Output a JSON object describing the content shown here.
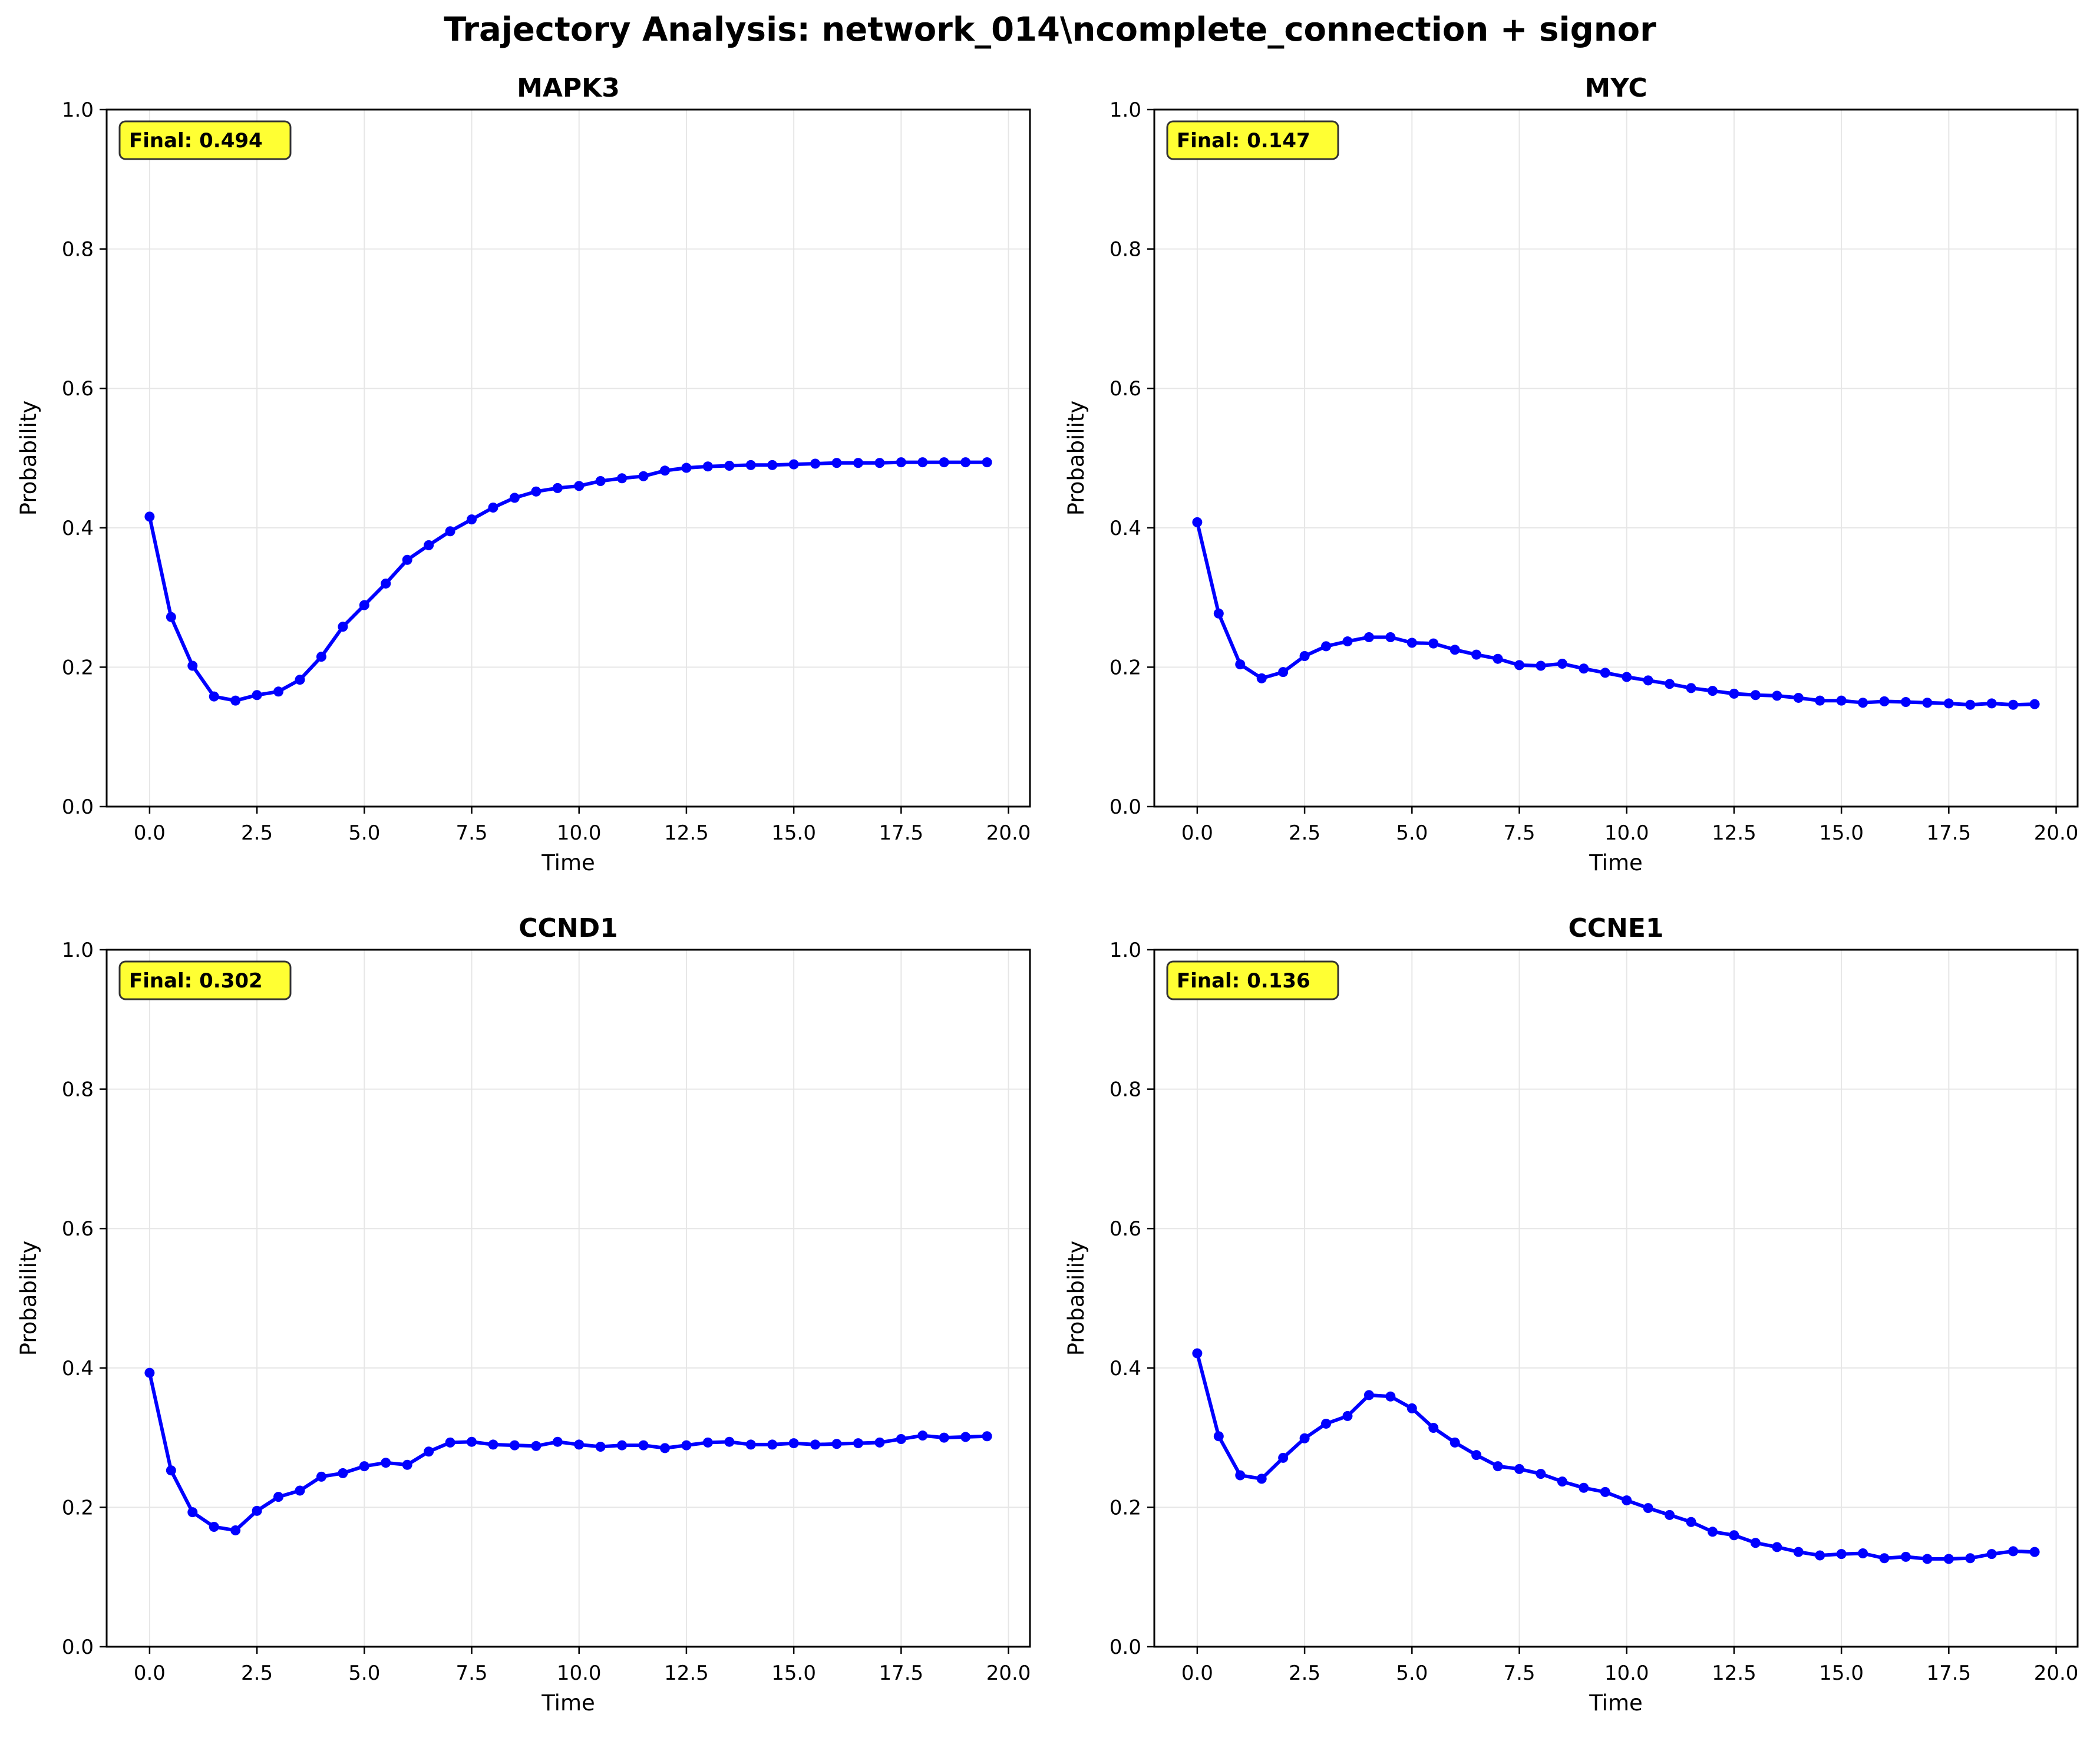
{
  "figure": {
    "suptitle": "Trajectory Analysis: network_014\\ncomplete_connection + signor"
  },
  "style": {
    "line_color": "#0000ff",
    "final_box_color": "#ffff33",
    "grid_color": "#e6e6e6"
  },
  "chart_data": [
    {
      "type": "line",
      "title": "MAPK3",
      "xlabel": "Time",
      "ylabel": "Probability",
      "xlim": [
        -1.0,
        20.5
      ],
      "ylim": [
        0.0,
        1.0
      ],
      "xticks": [
        0.0,
        2.5,
        5.0,
        7.5,
        10.0,
        12.5,
        15.0,
        17.5,
        20.0
      ],
      "xtick_labels": [
        "0.0",
        "2.5",
        "5.0",
        "7.5",
        "10.0",
        "12.5",
        "15.0",
        "17.5",
        "20.0"
      ],
      "yticks": [
        0.0,
        0.2,
        0.4,
        0.6,
        0.8,
        1.0
      ],
      "ytick_labels": [
        "0.0",
        "0.2",
        "0.4",
        "0.6",
        "0.8",
        "1.0"
      ],
      "grid": true,
      "annotation": "Final: 0.494",
      "series": [
        {
          "x": [
            0.0,
            0.5,
            1.0,
            1.5,
            2.0,
            2.5,
            3.0,
            3.5,
            4.0,
            4.5,
            5.0,
            5.5,
            6.0,
            6.5,
            7.0,
            7.5,
            8.0,
            8.5,
            9.0,
            9.5,
            10.0,
            10.5,
            11.0,
            11.5,
            12.0,
            12.5,
            13.0,
            13.5,
            14.0,
            14.5,
            15.0,
            15.5,
            16.0,
            16.5,
            17.0,
            17.5,
            18.0,
            18.5,
            19.0,
            19.5
          ],
          "y": [
            0.416,
            0.272,
            0.202,
            0.158,
            0.152,
            0.16,
            0.165,
            0.182,
            0.215,
            0.258,
            0.289,
            0.32,
            0.354,
            0.375,
            0.395,
            0.412,
            0.429,
            0.443,
            0.452,
            0.457,
            0.46,
            0.467,
            0.471,
            0.474,
            0.482,
            0.486,
            0.488,
            0.489,
            0.49,
            0.49,
            0.491,
            0.492,
            0.493,
            0.493,
            0.493,
            0.494,
            0.494,
            0.494,
            0.494,
            0.494
          ]
        }
      ]
    },
    {
      "type": "line",
      "title": "MYC",
      "xlabel": "Time",
      "ylabel": "Probability",
      "xlim": [
        -1.0,
        20.5
      ],
      "ylim": [
        0.0,
        1.0
      ],
      "xticks": [
        0.0,
        2.5,
        5.0,
        7.5,
        10.0,
        12.5,
        15.0,
        17.5,
        20.0
      ],
      "xtick_labels": [
        "0.0",
        "2.5",
        "5.0",
        "7.5",
        "10.0",
        "12.5",
        "15.0",
        "17.5",
        "20.0"
      ],
      "yticks": [
        0.0,
        0.2,
        0.4,
        0.6,
        0.8,
        1.0
      ],
      "ytick_labels": [
        "0.0",
        "0.2",
        "0.4",
        "0.6",
        "0.8",
        "1.0"
      ],
      "grid": true,
      "annotation": "Final: 0.147",
      "series": [
        {
          "x": [
            0.0,
            0.5,
            1.0,
            1.5,
            2.0,
            2.5,
            3.0,
            3.5,
            4.0,
            4.5,
            5.0,
            5.5,
            6.0,
            6.5,
            7.0,
            7.5,
            8.0,
            8.5,
            9.0,
            9.5,
            10.0,
            10.5,
            11.0,
            11.5,
            12.0,
            12.5,
            13.0,
            13.5,
            14.0,
            14.5,
            15.0,
            15.5,
            16.0,
            16.5,
            17.0,
            17.5,
            18.0,
            18.5,
            19.0,
            19.5
          ],
          "y": [
            0.408,
            0.277,
            0.204,
            0.184,
            0.193,
            0.216,
            0.23,
            0.237,
            0.243,
            0.243,
            0.235,
            0.234,
            0.225,
            0.218,
            0.212,
            0.203,
            0.202,
            0.205,
            0.198,
            0.192,
            0.186,
            0.181,
            0.176,
            0.17,
            0.166,
            0.162,
            0.16,
            0.159,
            0.156,
            0.152,
            0.152,
            0.149,
            0.151,
            0.15,
            0.149,
            0.148,
            0.146,
            0.148,
            0.146,
            0.147
          ]
        }
      ]
    },
    {
      "type": "line",
      "title": "CCND1",
      "xlabel": "Time",
      "ylabel": "Probability",
      "xlim": [
        -1.0,
        20.5
      ],
      "ylim": [
        0.0,
        1.0
      ],
      "xticks": [
        0.0,
        2.5,
        5.0,
        7.5,
        10.0,
        12.5,
        15.0,
        17.5,
        20.0
      ],
      "xtick_labels": [
        "0.0",
        "2.5",
        "5.0",
        "7.5",
        "10.0",
        "12.5",
        "15.0",
        "17.5",
        "20.0"
      ],
      "yticks": [
        0.0,
        0.2,
        0.4,
        0.6,
        0.8,
        1.0
      ],
      "ytick_labels": [
        "0.0",
        "0.2",
        "0.4",
        "0.6",
        "0.8",
        "1.0"
      ],
      "grid": true,
      "annotation": "Final: 0.302",
      "series": [
        {
          "x": [
            0.0,
            0.5,
            1.0,
            1.5,
            2.0,
            2.5,
            3.0,
            3.5,
            4.0,
            4.5,
            5.0,
            5.5,
            6.0,
            6.5,
            7.0,
            7.5,
            8.0,
            8.5,
            9.0,
            9.5,
            10.0,
            10.5,
            11.0,
            11.5,
            12.0,
            12.5,
            13.0,
            13.5,
            14.0,
            14.5,
            15.0,
            15.5,
            16.0,
            16.5,
            17.0,
            17.5,
            18.0,
            18.5,
            19.0,
            19.5
          ],
          "y": [
            0.393,
            0.253,
            0.193,
            0.172,
            0.167,
            0.195,
            0.215,
            0.224,
            0.244,
            0.249,
            0.259,
            0.264,
            0.261,
            0.28,
            0.293,
            0.294,
            0.29,
            0.289,
            0.288,
            0.294,
            0.29,
            0.287,
            0.289,
            0.289,
            0.285,
            0.289,
            0.293,
            0.294,
            0.29,
            0.29,
            0.292,
            0.29,
            0.291,
            0.292,
            0.293,
            0.298,
            0.303,
            0.3,
            0.301,
            0.302
          ]
        }
      ]
    },
    {
      "type": "line",
      "title": "CCNE1",
      "xlabel": "Time",
      "ylabel": "Probability",
      "xlim": [
        -1.0,
        20.5
      ],
      "ylim": [
        0.0,
        1.0
      ],
      "xticks": [
        0.0,
        2.5,
        5.0,
        7.5,
        10.0,
        12.5,
        15.0,
        17.5,
        20.0
      ],
      "xtick_labels": [
        "0.0",
        "2.5",
        "5.0",
        "7.5",
        "10.0",
        "12.5",
        "15.0",
        "17.5",
        "20.0"
      ],
      "yticks": [
        0.0,
        0.2,
        0.4,
        0.6,
        0.8,
        1.0
      ],
      "ytick_labels": [
        "0.0",
        "0.2",
        "0.4",
        "0.6",
        "0.8",
        "1.0"
      ],
      "grid": true,
      "annotation": "Final: 0.136",
      "series": [
        {
          "x": [
            0.0,
            0.5,
            1.0,
            1.5,
            2.0,
            2.5,
            3.0,
            3.5,
            4.0,
            4.5,
            5.0,
            5.5,
            6.0,
            6.5,
            7.0,
            7.5,
            8.0,
            8.5,
            9.0,
            9.5,
            10.0,
            10.5,
            11.0,
            11.5,
            12.0,
            12.5,
            13.0,
            13.5,
            14.0,
            14.5,
            15.0,
            15.5,
            16.0,
            16.5,
            17.0,
            17.5,
            18.0,
            18.5,
            19.0,
            19.5
          ],
          "y": [
            0.421,
            0.302,
            0.246,
            0.241,
            0.271,
            0.299,
            0.32,
            0.331,
            0.361,
            0.359,
            0.342,
            0.314,
            0.293,
            0.275,
            0.259,
            0.255,
            0.248,
            0.237,
            0.228,
            0.222,
            0.21,
            0.199,
            0.189,
            0.179,
            0.165,
            0.16,
            0.149,
            0.143,
            0.136,
            0.131,
            0.133,
            0.134,
            0.127,
            0.129,
            0.126,
            0.126,
            0.127,
            0.133,
            0.137,
            0.136
          ]
        }
      ]
    }
  ]
}
